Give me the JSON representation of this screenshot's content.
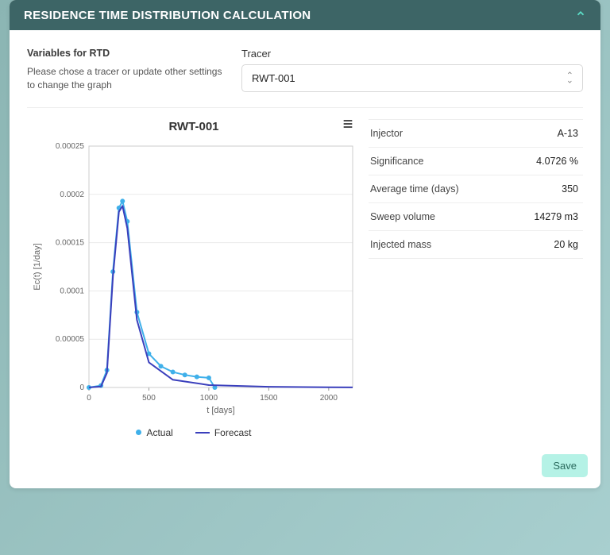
{
  "header": {
    "title": "RESIDENCE TIME DISTRIBUTION CALCULATION"
  },
  "variables_block": {
    "title": "Variables for RTD",
    "description": "Please chose a tracer or update other settings to change the graph"
  },
  "tracer_field": {
    "label": "Tracer",
    "selected": "RWT-001"
  },
  "chart": {
    "title": "RWT-001",
    "type": "line",
    "x_label": "t [days]",
    "y_label": "Ec(t) [1/day]",
    "xlim": [
      0,
      2200
    ],
    "ylim": [
      0,
      0.00025
    ],
    "x_ticks": [
      0,
      500,
      1000,
      1500,
      2000
    ],
    "y_ticks": [
      0,
      5e-05,
      0.0001,
      0.00015,
      0.0002,
      0.00025
    ],
    "y_tick_labels": [
      "0",
      "0.00005",
      "0.0001",
      "0.00015",
      "0.0002",
      "0.00025"
    ],
    "background_color": "#ffffff",
    "grid_color": "#e9e9e9",
    "series": [
      {
        "name": "Actual",
        "color": "#3fb0ea",
        "line_width": 2,
        "marker": "circle",
        "marker_size": 3,
        "x": [
          0,
          100,
          150,
          200,
          250,
          280,
          320,
          400,
          500,
          600,
          700,
          800,
          900,
          1000,
          1050
        ],
        "y": [
          0,
          2e-06,
          1.8e-05,
          0.00012,
          0.000186,
          0.000193,
          0.000172,
          7.8e-05,
          3.5e-05,
          2.2e-05,
          1.6e-05,
          1.3e-05,
          1.1e-05,
          1e-05,
          0
        ]
      },
      {
        "name": "Forecast",
        "color": "#3a3fbc",
        "line_width": 2,
        "marker": "none",
        "x": [
          0,
          100,
          150,
          200,
          250,
          280,
          320,
          400,
          500,
          700,
          1000,
          1500,
          2000,
          2200
        ],
        "y": [
          0,
          1e-06,
          1.5e-05,
          0.000115,
          0.000182,
          0.000188,
          0.000165,
          7e-05,
          2.6e-05,
          8e-06,
          2.5e-06,
          7e-07,
          2e-07,
          1e-07
        ]
      }
    ],
    "legend_position": "bottom"
  },
  "kv": [
    {
      "key": "Injector",
      "value": "A-13"
    },
    {
      "key": "Significance",
      "value": "4.0726 %"
    },
    {
      "key": "Average time (days)",
      "value": "350"
    },
    {
      "key": "Sweep volume",
      "value": "14279 m3"
    },
    {
      "key": "Injected mass",
      "value": "20 kg"
    }
  ],
  "buttons": {
    "save": "Save"
  },
  "colors": {
    "header_bg": "#3d6566",
    "header_text": "#ffffff",
    "accent": "#5be0c9",
    "save_bg": "#b5f2e6"
  }
}
